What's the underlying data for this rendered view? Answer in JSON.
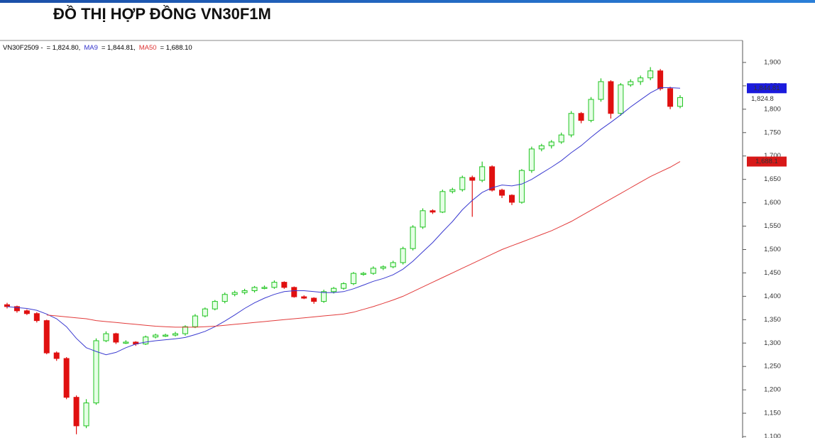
{
  "header": {
    "title": "ĐỒ THỊ HỢP ĐỒNG VN30F1M"
  },
  "chart_data": {
    "type": "candlestick",
    "legend": [
      {
        "text": "VN30F2509 -",
        "color": "#000000"
      },
      {
        "text": "= 1,824.80,",
        "color": "#000000"
      },
      {
        "text": "MA9",
        "color": "#3333cc"
      },
      {
        "text": "= 1,844.81,",
        "color": "#000000"
      },
      {
        "text": "MA50",
        "color": "#dd3333"
      },
      {
        "text": "= 1,688.10",
        "color": "#000000"
      }
    ],
    "ylim": [
      1097,
      1947
    ],
    "yticks": [
      {
        "value": 1100,
        "label": "1,100"
      },
      {
        "value": 1150,
        "label": "1,150"
      },
      {
        "value": 1200,
        "label": "1,200"
      },
      {
        "value": 1250,
        "label": "1,250"
      },
      {
        "value": 1300,
        "label": "1,300"
      },
      {
        "value": 1350,
        "label": "1,350"
      },
      {
        "value": 1400,
        "label": "1,400"
      },
      {
        "value": 1450,
        "label": "1,450"
      },
      {
        "value": 1500,
        "label": "1,500"
      },
      {
        "value": 1550,
        "label": "1,550"
      },
      {
        "value": 1600,
        "label": "1,600"
      },
      {
        "value": 1650,
        "label": "1,650"
      },
      {
        "value": 1700,
        "label": "1,700"
      },
      {
        "value": 1750,
        "label": "1,750"
      },
      {
        "value": 1800,
        "label": "1,800"
      },
      {
        "value": 1850,
        "label": "1,850"
      },
      {
        "value": 1900,
        "label": "1,900"
      }
    ],
    "up_color": "#22c422",
    "down_color": "#e01010",
    "open": [
      1382,
      1378,
      1369,
      1363,
      1348,
      1279,
      1267,
      1184,
      1123,
      1172,
      1305,
      1320,
      1302,
      1302,
      1298,
      1313,
      1317,
      1317,
      1320,
      1335,
      1358,
      1373,
      1389,
      1404,
      1408,
      1412,
      1419,
      1419,
      1430,
      1419,
      1399,
      1396,
      1389,
      1410,
      1417,
      1427,
      1449,
      1449,
      1460,
      1463,
      1472,
      1502,
      1548,
      1583,
      1580,
      1624,
      1628,
      1654,
      1648,
      1677,
      1627,
      1616,
      1601,
      1669,
      1715,
      1722,
      1730,
      1745,
      1791,
      1776,
      1821,
      1859,
      1791,
      1852,
      1859,
      1867,
      1882,
      1844,
      1806
    ],
    "high": [
      1386,
      1380,
      1372,
      1366,
      1350,
      1282,
      1270,
      1188,
      1180,
      1310,
      1325,
      1322,
      1306,
      1304,
      1316,
      1320,
      1320,
      1324,
      1338,
      1362,
      1376,
      1392,
      1408,
      1412,
      1416,
      1422,
      1423,
      1434,
      1432,
      1421,
      1402,
      1398,
      1414,
      1420,
      1430,
      1452,
      1452,
      1464,
      1466,
      1476,
      1506,
      1552,
      1588,
      1586,
      1628,
      1632,
      1658,
      1658,
      1688,
      1680,
      1630,
      1618,
      1672,
      1720,
      1726,
      1734,
      1750,
      1796,
      1794,
      1826,
      1866,
      1862,
      1856,
      1864,
      1872,
      1890,
      1886,
      1848,
      1830
    ],
    "low": [
      1374,
      1365,
      1360,
      1344,
      1276,
      1262,
      1180,
      1105,
      1118,
      1168,
      1302,
      1298,
      1298,
      1294,
      1296,
      1310,
      1313,
      1314,
      1316,
      1332,
      1355,
      1370,
      1385,
      1400,
      1404,
      1408,
      1415,
      1416,
      1416,
      1397,
      1394,
      1384,
      1386,
      1406,
      1414,
      1424,
      1444,
      1446,
      1456,
      1460,
      1468,
      1498,
      1544,
      1576,
      1578,
      1620,
      1624,
      1570,
      1644,
      1624,
      1610,
      1595,
      1598,
      1664,
      1710,
      1716,
      1726,
      1740,
      1770,
      1772,
      1816,
      1780,
      1786,
      1848,
      1852,
      1862,
      1840,
      1800,
      1802
    ],
    "close": [
      1378,
      1369,
      1363,
      1348,
      1279,
      1267,
      1184,
      1123,
      1172,
      1305,
      1320,
      1302,
      1302,
      1298,
      1313,
      1317,
      1317,
      1320,
      1335,
      1358,
      1373,
      1389,
      1404,
      1408,
      1412,
      1419,
      1419,
      1430,
      1419,
      1399,
      1396,
      1389,
      1410,
      1417,
      1427,
      1449,
      1449,
      1460,
      1463,
      1472,
      1502,
      1548,
      1583,
      1580,
      1624,
      1628,
      1654,
      1648,
      1677,
      1627,
      1616,
      1601,
      1669,
      1715,
      1722,
      1730,
      1745,
      1791,
      1776,
      1821,
      1859,
      1791,
      1852,
      1859,
      1867,
      1882,
      1844,
      1806,
      1825
    ],
    "last_close": {
      "value": 1824.8,
      "label": "1,824.8"
    },
    "series": [
      {
        "name": "MA9",
        "color": "#3a3ad0",
        "last_label": {
          "value": 1844.81,
          "label": "1,844.81"
        },
        "values": [
          1378,
          1376,
          1374,
          1370,
          1362,
          1352,
          1335,
          1310,
          1290,
          1282,
          1275,
          1280,
          1290,
          1298,
          1302,
          1305,
          1307,
          1309,
          1312,
          1318,
          1325,
          1335,
          1347,
          1360,
          1374,
          1386,
          1396,
          1404,
          1410,
          1412,
          1412,
          1410,
          1408,
          1408,
          1410,
          1416,
          1424,
          1432,
          1438,
          1446,
          1458,
          1475,
          1495,
          1515,
          1538,
          1560,
          1585,
          1605,
          1622,
          1632,
          1638,
          1636,
          1640,
          1650,
          1663,
          1676,
          1690,
          1707,
          1722,
          1740,
          1757,
          1772,
          1788,
          1805,
          1820,
          1835,
          1846,
          1846,
          1844.81
        ]
      },
      {
        "name": "MA50",
        "color": "#e23b3b",
        "last_label": {
          "value": 1688.1,
          "label": "1,688.1"
        },
        "values": [
          null,
          null,
          null,
          null,
          1360,
          1358,
          1356,
          1354,
          1352,
          1348,
          1346,
          1344,
          1342,
          1340,
          1338,
          1336,
          1335,
          1334,
          1334,
          1334,
          1335,
          1336,
          1338,
          1340,
          1342,
          1344,
          1346,
          1348,
          1350,
          1352,
          1354,
          1356,
          1358,
          1360,
          1362,
          1366,
          1372,
          1378,
          1385,
          1392,
          1400,
          1410,
          1420,
          1430,
          1440,
          1450,
          1460,
          1470,
          1480,
          1490,
          1500,
          1508,
          1516,
          1524,
          1532,
          1540,
          1550,
          1560,
          1572,
          1584,
          1596,
          1608,
          1620,
          1632,
          1644,
          1656,
          1666,
          1676,
          1688.1
        ]
      }
    ]
  }
}
